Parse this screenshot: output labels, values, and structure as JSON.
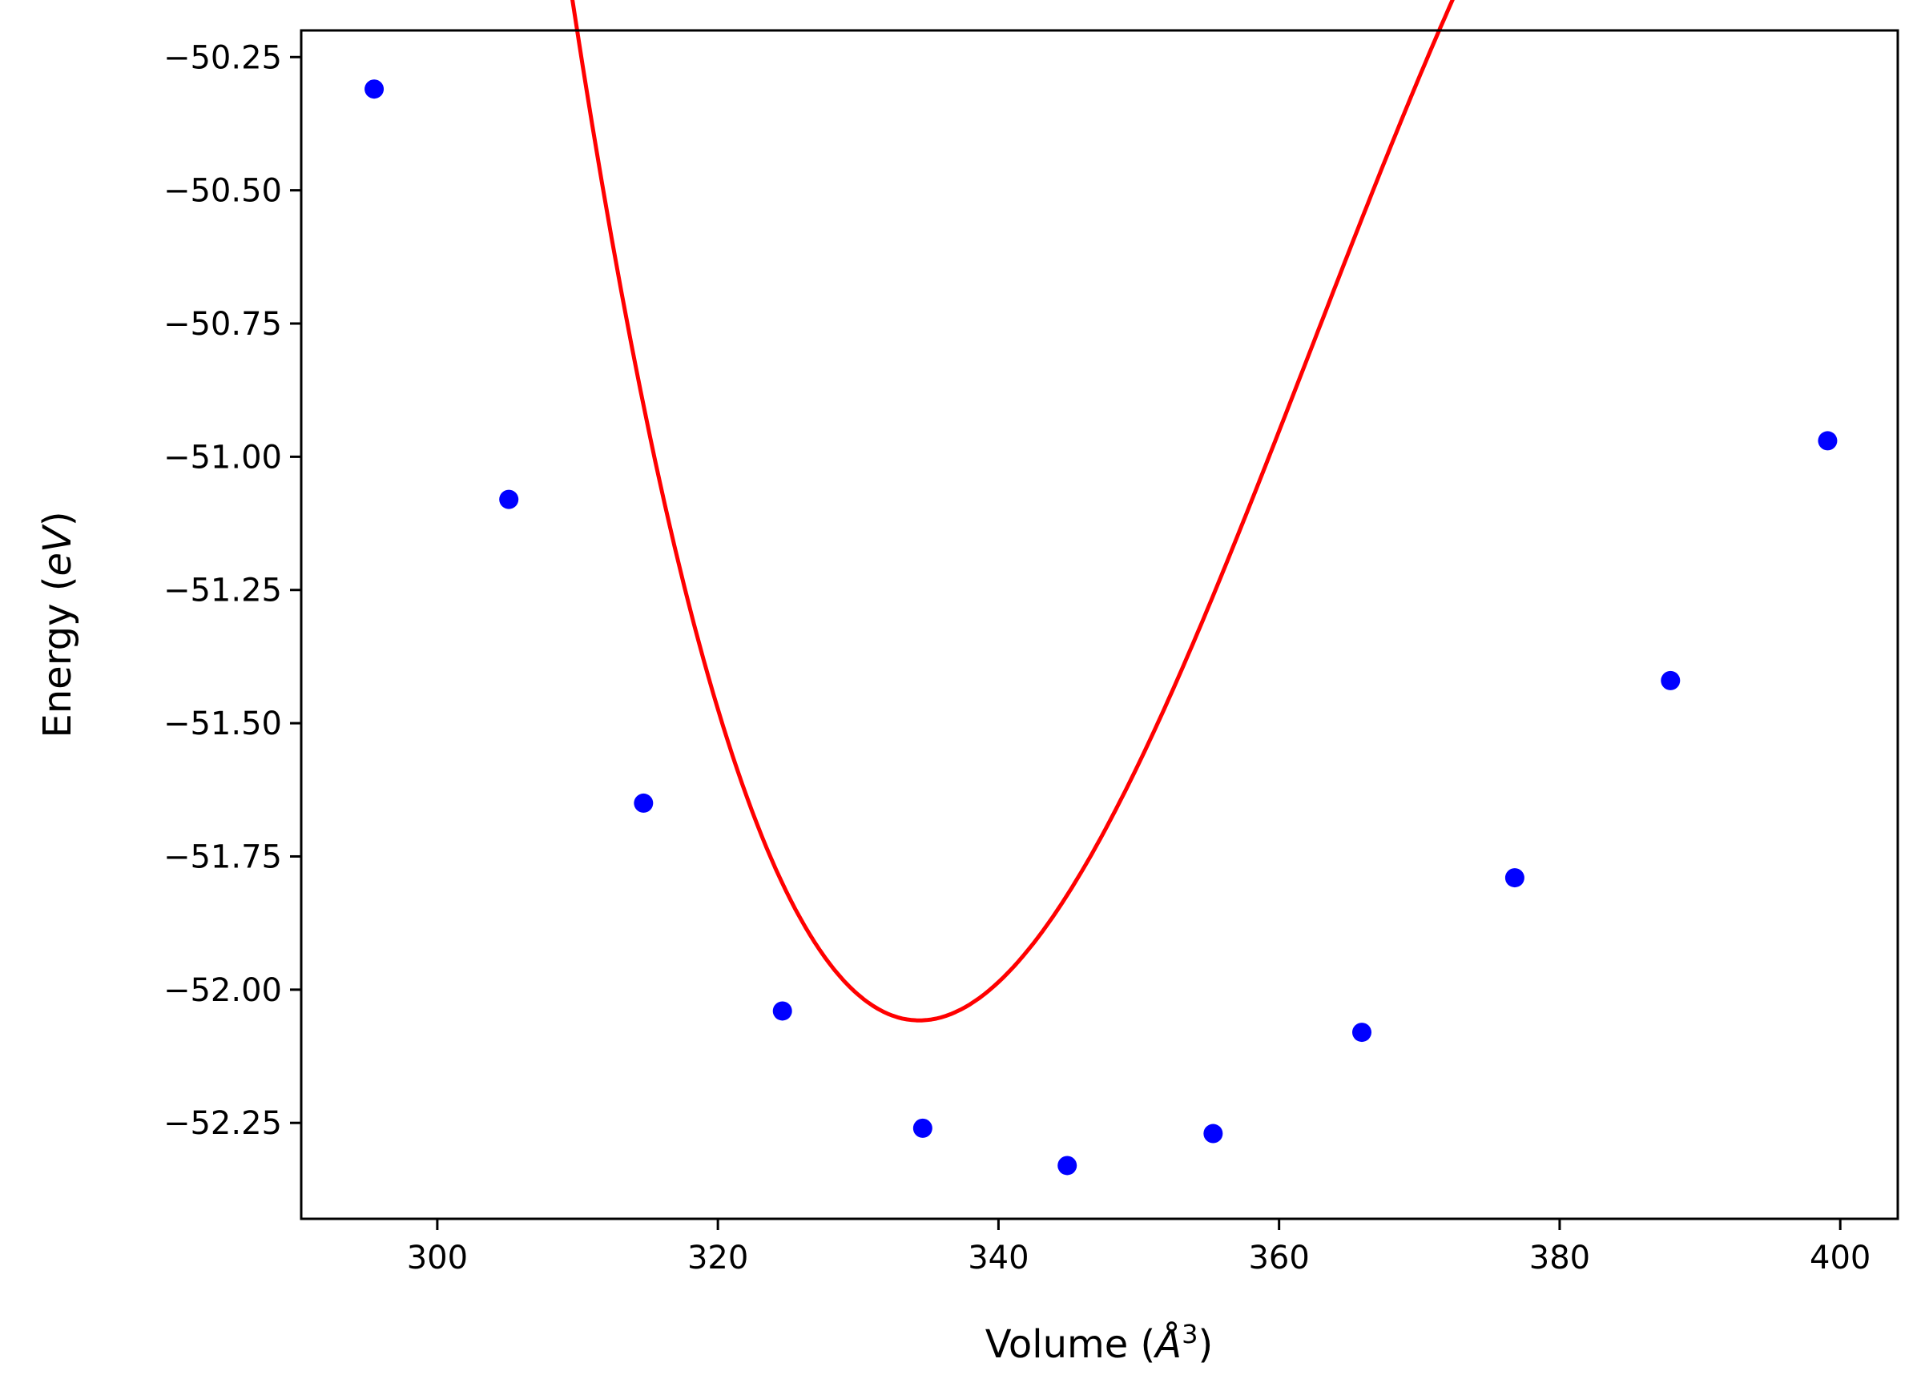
{
  "chart_data": {
    "type": "scatter",
    "title": "",
    "xlabel": "Volume (Å³)",
    "ylabel": "Energy (eV)",
    "xlabel_parts": {
      "pre": "Volume (",
      "sym": "Å",
      "sup": "3",
      "post": ")"
    },
    "ylabel_parts": {
      "pre": "Energy (",
      "sym": "eV",
      "post": ")"
    },
    "xlim": [
      290.3,
      404.1
    ],
    "ylim": [
      -52.43,
      -50.2
    ],
    "x_ticks": [
      300,
      320,
      340,
      360,
      380,
      400
    ],
    "x_tick_labels": [
      "300",
      "320",
      "340",
      "360",
      "380",
      "400"
    ],
    "y_ticks": [
      -50.25,
      -50.5,
      -50.75,
      -51.0,
      -51.25,
      -51.5,
      -51.75,
      -52.0,
      -52.25
    ],
    "y_tick_labels": [
      "−50.25",
      "−50.50",
      "−50.75",
      "−51.00",
      "−51.25",
      "−51.50",
      "−51.75",
      "−52.00",
      "−52.25"
    ],
    "grid": false,
    "legend": "none",
    "series": [
      {
        "kind": "scatter",
        "color": "#0000ff",
        "x": [
          295.5,
          305.1,
          314.7,
          324.6,
          334.6,
          344.9,
          355.3,
          365.9,
          376.8,
          387.9,
          399.1
        ],
        "y": [
          -50.31,
          -51.08,
          -51.65,
          -52.04,
          -52.26,
          -52.33,
          -52.27,
          -52.08,
          -51.79,
          -51.42,
          -50.97
        ]
      },
      {
        "kind": "line",
        "color": "#ff0000",
        "fit": "cubic",
        "coefficients": [
          -51.9858,
          0.0245716,
          0.00193287,
          -2.88148e-05
        ],
        "x_center": 340,
        "domain": [
          295.5,
          399.1
        ]
      }
    ]
  }
}
